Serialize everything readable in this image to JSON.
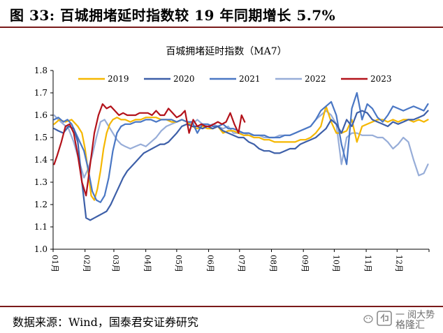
{
  "figure": {
    "title": "图 33:  百城拥堵延时指数较 19 年同期增长 5.7%",
    "source": "数据来源：Wind，国泰君安证券研究"
  },
  "watermark": {
    "line1": "一  阅大势",
    "line2": "格隆汇"
  },
  "colors": {
    "2019": "#F5B700",
    "2020": "#3D5FA8",
    "2021": "#4A77C4",
    "2022": "#97ADD8",
    "2023": "#B3121A",
    "border": "#7a1a1a"
  },
  "chart_data": {
    "type": "line",
    "title": "百城拥堵延时指数（MA7）",
    "xlabel": "",
    "ylabel": "",
    "ylim": [
      1.0,
      1.8
    ],
    "yticks": [
      "1.0",
      "1.1",
      "1.2",
      "1.3",
      "1.4",
      "1.5",
      "1.6",
      "1.7",
      "1.8"
    ],
    "xticks": [
      "01月",
      "02月",
      "03月",
      "04月",
      "05月",
      "06月",
      "07月",
      "08月",
      "09月",
      "10月",
      "11月",
      "12月"
    ],
    "legend_position": "top",
    "grid": false,
    "series": [
      {
        "name": "2019",
        "x": [
          1,
          6,
          12,
          18,
          24,
          28,
          31,
          34,
          37,
          40,
          43,
          46,
          49,
          52,
          55,
          58,
          62,
          66,
          70,
          75,
          80,
          85,
          90,
          95,
          100,
          105,
          110,
          115,
          120,
          125,
          130,
          135,
          140,
          145,
          150,
          155,
          160,
          165,
          170,
          175,
          180,
          185,
          190,
          195,
          200,
          205,
          210,
          215,
          220,
          225,
          230,
          235,
          240,
          245,
          250,
          255,
          260,
          265,
          270,
          275,
          280,
          285,
          290,
          295,
          300,
          305,
          310,
          315,
          320,
          325,
          330,
          335,
          340,
          345,
          350,
          355,
          360,
          364
        ],
        "y": [
          1.56,
          1.58,
          1.57,
          1.58,
          1.55,
          1.52,
          1.45,
          1.35,
          1.24,
          1.22,
          1.27,
          1.35,
          1.45,
          1.52,
          1.56,
          1.58,
          1.59,
          1.58,
          1.58,
          1.57,
          1.58,
          1.58,
          1.59,
          1.59,
          1.59,
          1.58,
          1.58,
          1.57,
          1.57,
          1.58,
          1.57,
          1.55,
          1.54,
          1.55,
          1.54,
          1.54,
          1.55,
          1.52,
          1.53,
          1.53,
          1.52,
          1.51,
          1.51,
          1.5,
          1.5,
          1.49,
          1.49,
          1.48,
          1.48,
          1.48,
          1.48,
          1.48,
          1.49,
          1.49,
          1.5,
          1.52,
          1.55,
          1.64,
          1.57,
          1.52,
          1.52,
          1.53,
          1.58,
          1.48,
          1.55,
          1.56,
          1.57,
          1.58,
          1.58,
          1.57,
          1.58,
          1.57,
          1.58,
          1.58,
          1.57,
          1.58,
          1.57,
          1.58
        ]
      },
      {
        "name": "2020",
        "x": [
          1,
          5,
          10,
          15,
          20,
          24,
          28,
          32,
          36,
          40,
          44,
          48,
          52,
          56,
          60,
          64,
          68,
          72,
          76,
          80,
          84,
          88,
          92,
          96,
          100,
          104,
          108,
          112,
          116,
          120,
          125,
          130,
          135,
          140,
          145,
          150,
          155,
          160,
          165,
          170,
          175,
          180,
          185,
          190,
          195,
          200,
          205,
          210,
          215,
          220,
          225,
          230,
          235,
          240,
          245,
          250,
          255,
          260,
          265,
          270,
          275,
          280,
          285,
          290,
          295,
          300,
          305,
          310,
          315,
          320,
          325,
          330,
          335,
          340,
          345,
          350,
          355,
          360,
          364
        ],
        "y": [
          1.54,
          1.53,
          1.52,
          1.55,
          1.54,
          1.48,
          1.3,
          1.14,
          1.13,
          1.14,
          1.15,
          1.16,
          1.17,
          1.2,
          1.24,
          1.28,
          1.32,
          1.35,
          1.37,
          1.39,
          1.41,
          1.43,
          1.44,
          1.45,
          1.46,
          1.47,
          1.47,
          1.48,
          1.5,
          1.52,
          1.55,
          1.56,
          1.55,
          1.55,
          1.54,
          1.55,
          1.54,
          1.55,
          1.53,
          1.52,
          1.51,
          1.5,
          1.5,
          1.48,
          1.47,
          1.45,
          1.44,
          1.44,
          1.43,
          1.43,
          1.44,
          1.45,
          1.45,
          1.47,
          1.48,
          1.49,
          1.5,
          1.52,
          1.54,
          1.58,
          1.56,
          1.52,
          1.58,
          1.55,
          1.61,
          1.62,
          1.61,
          1.58,
          1.57,
          1.56,
          1.55,
          1.57,
          1.56,
          1.57,
          1.58,
          1.58,
          1.59,
          1.6,
          1.62
        ]
      },
      {
        "name": "2021",
        "x": [
          1,
          5,
          10,
          14,
          18,
          22,
          26,
          30,
          34,
          38,
          42,
          46,
          50,
          54,
          58,
          62,
          66,
          70,
          75,
          80,
          85,
          90,
          95,
          100,
          105,
          110,
          115,
          120,
          125,
          130,
          135,
          140,
          145,
          150,
          155,
          160,
          165,
          170,
          175,
          180,
          185,
          190,
          195,
          200,
          205,
          210,
          215,
          220,
          225,
          230,
          235,
          240,
          245,
          250,
          255,
          260,
          265,
          270,
          275,
          280,
          285,
          290,
          295,
          300,
          305,
          310,
          315,
          320,
          325,
          330,
          335,
          340,
          345,
          350,
          355,
          360,
          364
        ],
        "y": [
          1.58,
          1.59,
          1.57,
          1.58,
          1.56,
          1.52,
          1.48,
          1.44,
          1.36,
          1.26,
          1.22,
          1.21,
          1.24,
          1.32,
          1.44,
          1.52,
          1.55,
          1.56,
          1.56,
          1.57,
          1.57,
          1.58,
          1.58,
          1.57,
          1.58,
          1.58,
          1.58,
          1.57,
          1.58,
          1.57,
          1.57,
          1.52,
          1.56,
          1.56,
          1.55,
          1.55,
          1.56,
          1.54,
          1.54,
          1.53,
          1.52,
          1.52,
          1.51,
          1.51,
          1.51,
          1.5,
          1.5,
          1.5,
          1.51,
          1.51,
          1.52,
          1.53,
          1.54,
          1.55,
          1.58,
          1.62,
          1.64,
          1.66,
          1.6,
          1.47,
          1.38,
          1.63,
          1.7,
          1.58,
          1.65,
          1.63,
          1.59,
          1.57,
          1.6,
          1.64,
          1.63,
          1.62,
          1.63,
          1.64,
          1.63,
          1.62,
          1.65
        ]
      },
      {
        "name": "2022",
        "x": [
          1,
          5,
          10,
          15,
          20,
          25,
          30,
          34,
          38,
          42,
          46,
          50,
          54,
          58,
          62,
          66,
          70,
          75,
          80,
          85,
          90,
          95,
          100,
          105,
          110,
          115,
          120,
          125,
          130,
          135,
          140,
          145,
          150,
          155,
          160,
          165,
          170,
          175,
          180,
          185,
          190,
          195,
          200,
          205,
          210,
          215,
          220,
          225,
          230,
          235,
          240,
          245,
          250,
          255,
          260,
          265,
          270,
          275,
          280,
          285,
          290,
          295,
          300,
          305,
          310,
          315,
          320,
          325,
          330,
          335,
          340,
          345,
          350,
          355,
          360,
          364
        ],
        "y": [
          1.6,
          1.58,
          1.56,
          1.54,
          1.48,
          1.4,
          1.32,
          1.36,
          1.42,
          1.5,
          1.57,
          1.58,
          1.55,
          1.52,
          1.49,
          1.47,
          1.46,
          1.45,
          1.46,
          1.47,
          1.46,
          1.48,
          1.5,
          1.53,
          1.55,
          1.56,
          1.57,
          1.58,
          1.57,
          1.56,
          1.58,
          1.56,
          1.55,
          1.56,
          1.55,
          1.54,
          1.55,
          1.52,
          1.52,
          1.52,
          1.51,
          1.51,
          1.51,
          1.5,
          1.5,
          1.5,
          1.51,
          1.51,
          1.51,
          1.52,
          1.53,
          1.54,
          1.55,
          1.58,
          1.6,
          1.62,
          1.6,
          1.56,
          1.38,
          1.5,
          1.52,
          1.52,
          1.51,
          1.51,
          1.51,
          1.5,
          1.5,
          1.48,
          1.45,
          1.47,
          1.5,
          1.48,
          1.4,
          1.33,
          1.34,
          1.38
        ]
      },
      {
        "name": "2023",
        "x": [
          1,
          4,
          8,
          12,
          16,
          20,
          24,
          28,
          32,
          36,
          40,
          44,
          48,
          52,
          56,
          60,
          64,
          68,
          72,
          76,
          80,
          84,
          88,
          92,
          96,
          100,
          104,
          108,
          112,
          116,
          120,
          124,
          128,
          132,
          136,
          140,
          144,
          148,
          152,
          156,
          160,
          164,
          168,
          172,
          176,
          180,
          183,
          186
        ],
        "y": [
          1.38,
          1.42,
          1.48,
          1.55,
          1.56,
          1.52,
          1.42,
          1.3,
          1.24,
          1.38,
          1.52,
          1.6,
          1.65,
          1.63,
          1.64,
          1.62,
          1.6,
          1.61,
          1.6,
          1.6,
          1.6,
          1.61,
          1.61,
          1.61,
          1.6,
          1.62,
          1.6,
          1.6,
          1.63,
          1.61,
          1.59,
          1.6,
          1.62,
          1.52,
          1.58,
          1.55,
          1.56,
          1.55,
          1.55,
          1.56,
          1.57,
          1.56,
          1.57,
          1.61,
          1.56,
          1.52,
          1.6,
          1.57
        ]
      }
    ]
  }
}
